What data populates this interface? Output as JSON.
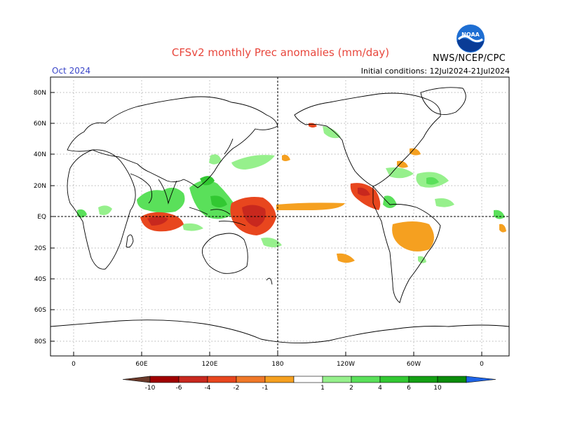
{
  "title": "CFSv2 monthly Prec anomalies (mm/day)",
  "period": "Oct 2024",
  "initial_conditions": "Initial conditions: 12Jul2024-21Jul2024",
  "agency": "NWS/NCEP/CPC",
  "logo_text": "NOAA",
  "lat_ticks": [
    "80N",
    "60N",
    "40N",
    "20N",
    "EQ",
    "20S",
    "40S",
    "60S",
    "80S"
  ],
  "lon_ticks": [
    "0",
    "60E",
    "120E",
    "180",
    "120W",
    "60W",
    "0"
  ],
  "colorbar": {
    "labels": [
      "-10",
      "-6",
      "-4",
      "-2",
      "-1",
      "1",
      "2",
      "4",
      "6",
      "10"
    ],
    "colors": [
      "#6b3a2a",
      "#a00000",
      "#c8281e",
      "#e8461e",
      "#f07828",
      "#f5a020",
      "#ffffff",
      "#96f08c",
      "#5ae05a",
      "#32c832",
      "#14a014",
      "#0a8c0a",
      "#1e64e6"
    ]
  },
  "colors": {
    "title": "#e8463c",
    "period": "#3b46c8",
    "wet_light": "#96f08c",
    "wet_medium": "#5ae05a",
    "dry_light": "#f5a020",
    "dry_medium": "#e8461e",
    "dry_strong": "#c8281e"
  }
}
